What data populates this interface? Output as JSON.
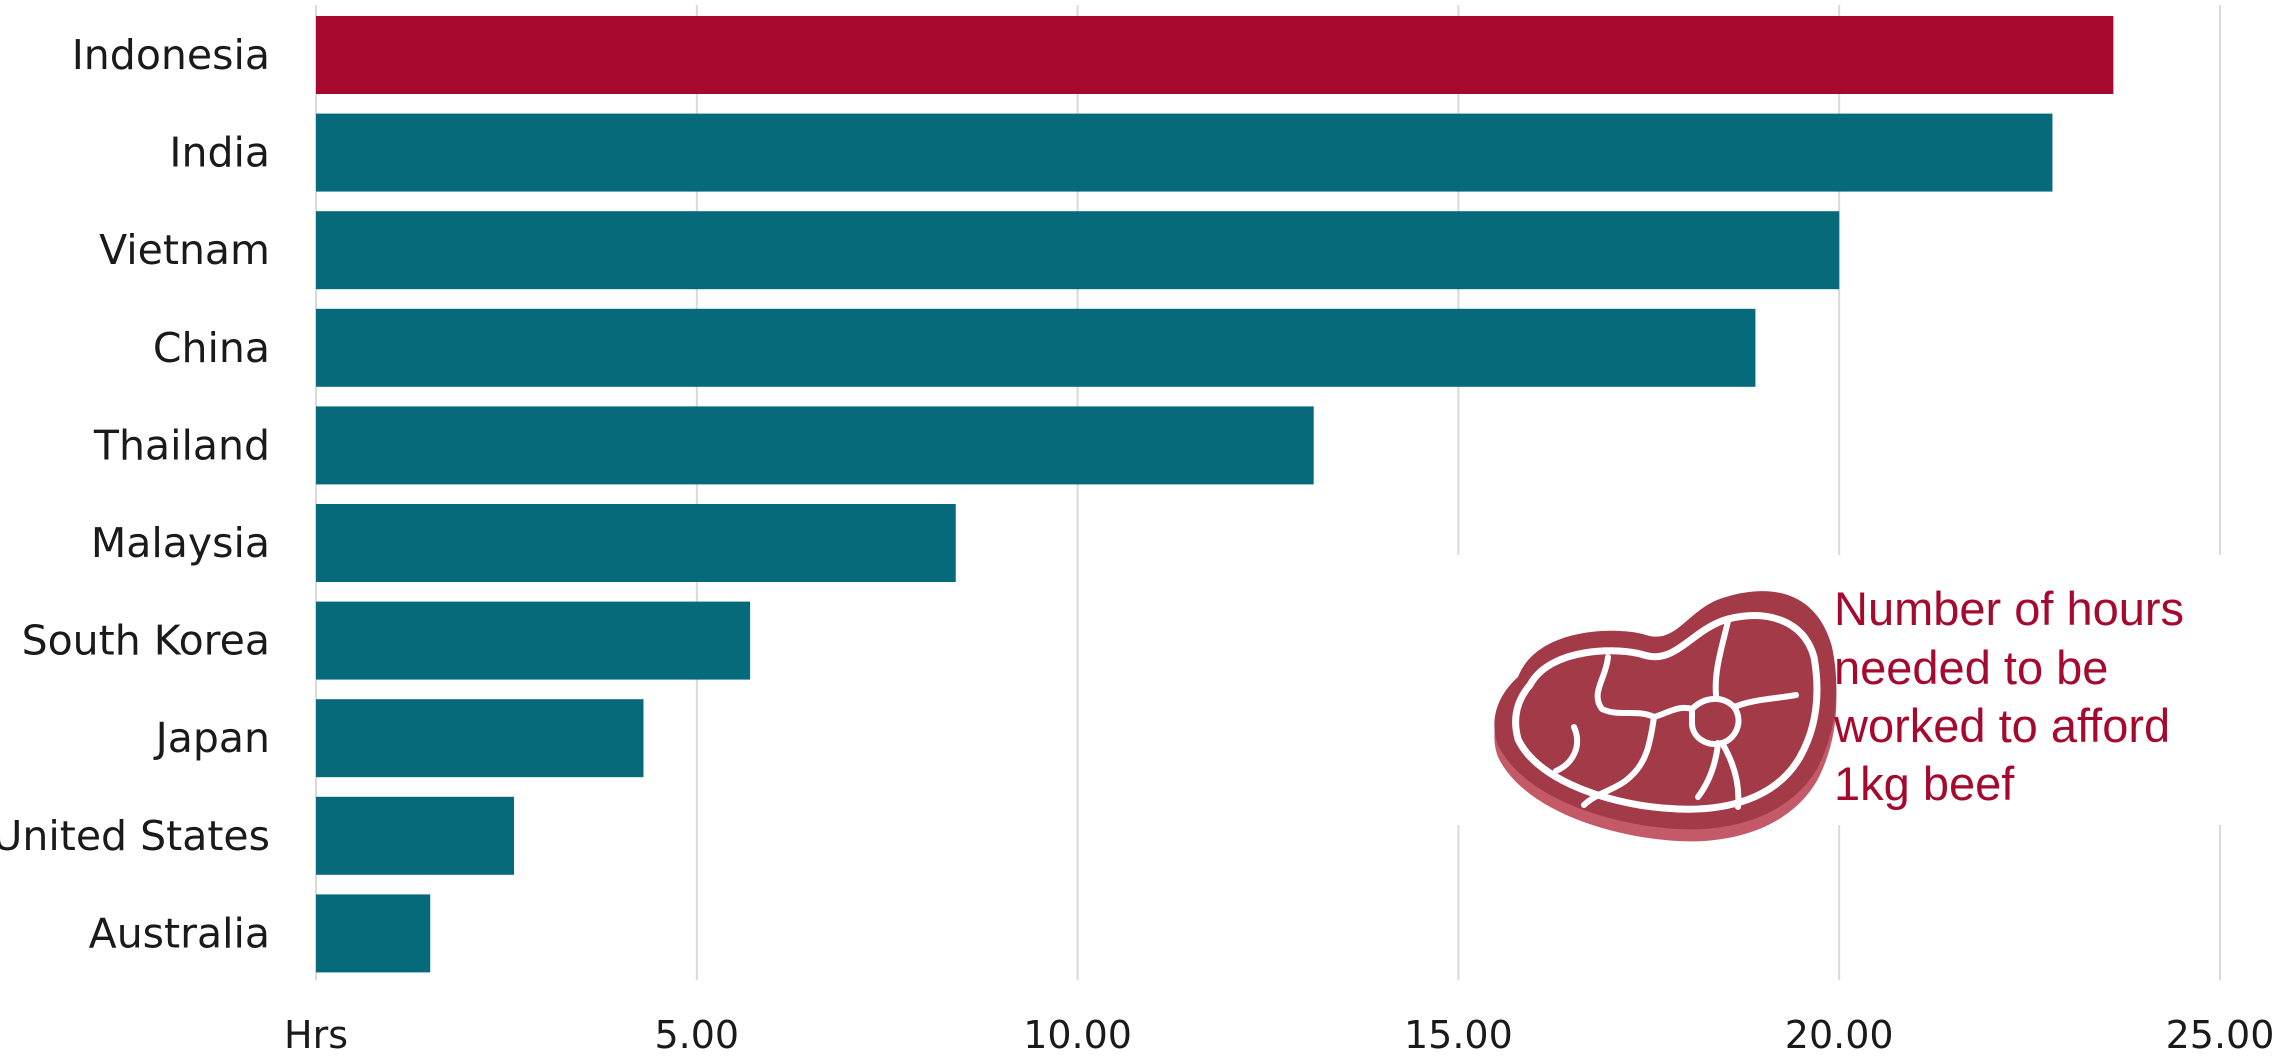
{
  "chart_data": {
    "type": "bar",
    "orientation": "horizontal",
    "categories": [
      "Indonesia",
      "India",
      "Vietnam",
      "China",
      "Thailand",
      "Malaysia",
      "South Korea",
      "Japan",
      "United States",
      "Australia"
    ],
    "values": [
      23.6,
      22.8,
      20.0,
      18.9,
      13.1,
      8.4,
      5.7,
      4.3,
      2.6,
      1.5
    ],
    "highlight_category": "Indonesia",
    "colors": {
      "default": "#066a7a",
      "highlight": "#a50a2e",
      "grid": "#d9d9d9",
      "annotation": "#a50a2e",
      "icon_fill": "#a23a48",
      "icon_rim": "#c45a68"
    },
    "xlim": [
      0,
      25
    ],
    "xticks": [
      {
        "value": 0,
        "label": "Hrs"
      },
      {
        "value": 5,
        "label": "5.00"
      },
      {
        "value": 10,
        "label": "10.00"
      },
      {
        "value": 15,
        "label": "15.00"
      },
      {
        "value": 20,
        "label": "20.00"
      },
      {
        "value": 25,
        "label": "25.00"
      }
    ],
    "grid": true,
    "annotation": {
      "lines": [
        "Number of hours",
        "needed to be",
        "worked to afford",
        "1kg beef"
      ],
      "icon": "steak-icon"
    }
  }
}
